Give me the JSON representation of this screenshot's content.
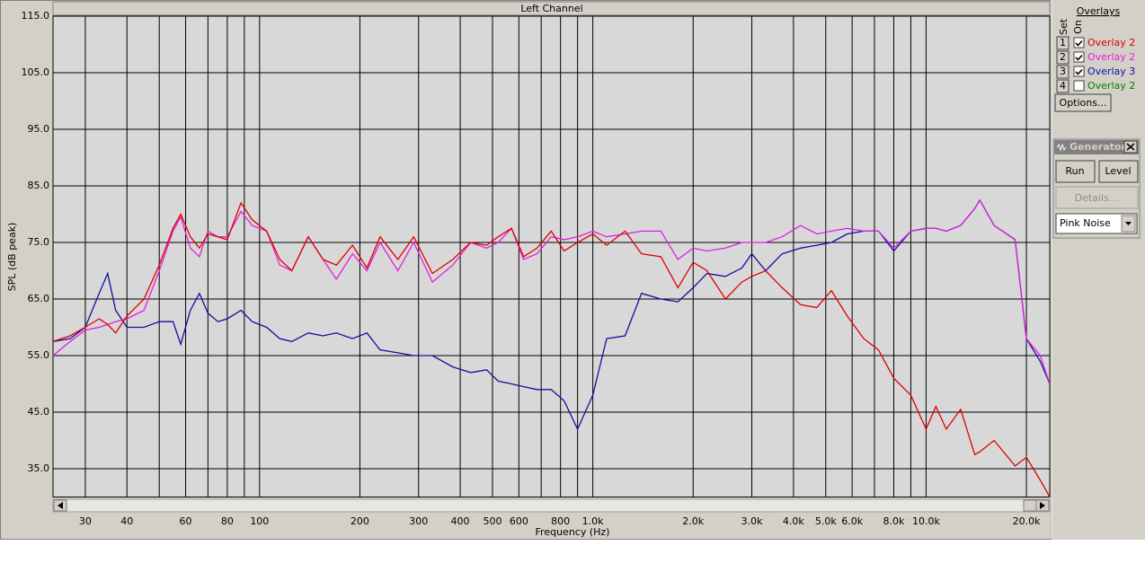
{
  "chart_data": {
    "type": "line",
    "title": "Left Channel",
    "x_label": "Frequency (Hz)",
    "y_label": "SPL (dB peak)",
    "xscale": "log",
    "grid": true,
    "xlim": [
      24,
      23500
    ],
    "ylim": [
      30,
      115
    ],
    "xticks": [
      30,
      40,
      60,
      80,
      100,
      200,
      300,
      400,
      500,
      600,
      800,
      {
        "value": 1000,
        "label": "1.0k"
      },
      {
        "value": 2000,
        "label": "2.0k"
      },
      {
        "value": 3000,
        "label": "3.0k"
      },
      {
        "value": 4000,
        "label": "4.0k"
      },
      {
        "value": 5000,
        "label": "5.0k"
      },
      {
        "value": 6000,
        "label": "6.0k"
      },
      {
        "value": 8000,
        "label": "8.0k"
      },
      {
        "value": 10000,
        "label": "10.0k"
      },
      {
        "value": 20000,
        "label": "20.0k"
      }
    ],
    "xgrid": [
      50,
      70,
      90,
      700,
      900,
      7000,
      9000
    ],
    "yticks": [
      {
        "value": 115,
        "label": "115.0"
      },
      {
        "value": 105,
        "label": "105.0"
      },
      {
        "value": 95,
        "label": "95.0"
      },
      {
        "value": 85,
        "label": "85.0"
      },
      {
        "value": 75,
        "label": "75.0"
      },
      {
        "value": 65,
        "label": "65.0"
      },
      {
        "value": 55,
        "label": "55.0"
      },
      {
        "value": 45,
        "label": "45.0"
      },
      {
        "value": 35,
        "label": "35.0"
      }
    ],
    "x": [
      24,
      27,
      30,
      33,
      35,
      37,
      40,
      45,
      50,
      55,
      58,
      62,
      66,
      70,
      75,
      80,
      88,
      95,
      105,
      115,
      125,
      140,
      155,
      170,
      190,
      210,
      230,
      260,
      290,
      330,
      380,
      430,
      480,
      520,
      570,
      620,
      680,
      750,
      820,
      900,
      1000,
      1100,
      1250,
      1400,
      1600,
      1800,
      2000,
      2200,
      2500,
      2800,
      3000,
      3300,
      3700,
      4200,
      4700,
      5200,
      5800,
      6500,
      7200,
      8000,
      9000,
      10000,
      10700,
      11500,
      12700,
      14000,
      14500,
      16000,
      18500,
      20000,
      22000,
      23500
    ],
    "series": [
      {
        "set": "1",
        "name": "Overlay 2",
        "on": true,
        "color": "#e00000",
        "values": [
          57.5,
          58.5,
          60,
          61.5,
          60.5,
          59,
          62,
          65,
          71,
          77.5,
          80,
          76,
          74,
          76.5,
          76,
          75.5,
          82,
          79,
          77,
          72,
          70,
          76,
          72,
          71,
          74.5,
          70.5,
          76,
          72,
          76,
          69.5,
          72,
          75,
          74.5,
          76,
          77.5,
          72.5,
          74,
          77,
          73.5,
          75,
          76.5,
          74.5,
          77,
          73,
          72.5,
          67,
          71.5,
          70,
          65,
          68,
          69,
          70,
          67,
          64,
          63.5,
          66.5,
          62,
          58,
          56,
          51,
          48,
          42,
          46,
          42,
          45.5,
          37.5,
          38,
          40,
          35.5,
          37,
          33,
          30
        ]
      },
      {
        "set": "2",
        "name": "Overlay 2",
        "on": true,
        "color": "#e020e0",
        "values": [
          55,
          57.5,
          59.5,
          60,
          60.5,
          61,
          61.5,
          63,
          70,
          77,
          79.5,
          74,
          72.5,
          77,
          76,
          76,
          80.5,
          78,
          77,
          71,
          70,
          76,
          72,
          68.5,
          73,
          70,
          75,
          70,
          75,
          68,
          71,
          75,
          74,
          75,
          77.5,
          72,
          73,
          76,
          75.5,
          76,
          77,
          76,
          76.5,
          77,
          77,
          72,
          74,
          73.5,
          74,
          75,
          75,
          75,
          76,
          78,
          76.5,
          77,
          77.5,
          77,
          77,
          74,
          77,
          77.5,
          77.5,
          77,
          78,
          81,
          82.5,
          78,
          75.5,
          58,
          55,
          50
        ]
      },
      {
        "set": "3",
        "name": "Overlay 3",
        "on": true,
        "color": "#1010a0",
        "values": [
          57.5,
          58,
          60,
          66,
          69.5,
          63,
          60,
          60,
          61,
          61,
          57,
          63,
          66,
          62.5,
          61,
          61.5,
          63,
          61,
          60,
          58,
          57.5,
          59,
          58.5,
          59,
          58,
          59,
          56,
          55.5,
          55,
          55,
          53,
          52,
          52.5,
          50.5,
          50,
          49.5,
          49,
          49,
          47,
          42,
          48,
          58,
          58.5,
          66,
          65,
          64.5,
          67,
          69.5,
          69,
          70.5,
          73,
          70,
          73,
          74,
          74.5,
          75,
          76.5,
          77,
          77,
          73.5,
          77,
          77.5,
          77.5,
          77,
          78,
          81,
          82.5,
          78,
          75.5,
          58,
          54,
          50
        ]
      },
      {
        "set": "4",
        "name": "Overlay 2",
        "on": false,
        "color": "#008000"
      }
    ]
  },
  "ui": {
    "overlays_title": "Overlays",
    "set_header": "Set",
    "on_header": "On",
    "options_button": "Options...",
    "generator": {
      "title": "Generator",
      "run": "Run",
      "level": "Level",
      "details": "Details...",
      "signal": "Pink Noise"
    }
  }
}
